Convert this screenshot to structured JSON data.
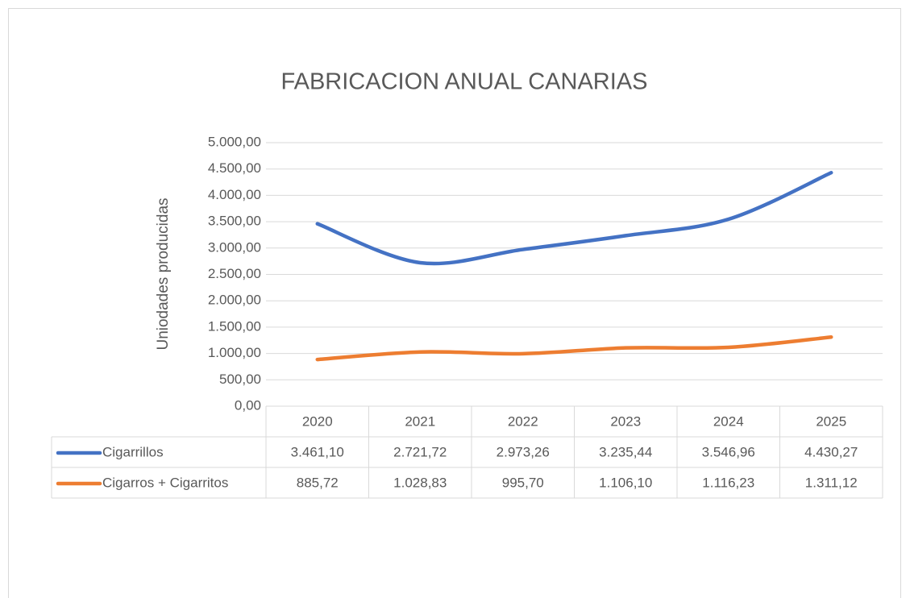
{
  "chart_data": {
    "type": "line",
    "title": "FABRICACION ANUAL CANARIAS",
    "y_label": "Uniodades producidas",
    "categories": [
      "2020",
      "2021",
      "2022",
      "2023",
      "2024",
      "2025"
    ],
    "series": [
      {
        "name": "Cigarrillos",
        "color": "#4472c4",
        "values": [
          3461.1,
          2721.72,
          2973.26,
          3235.44,
          3546.96,
          4430.27
        ],
        "value_labels": [
          "3.461,10",
          "2.721,72",
          "2.973,26",
          "3.235,44",
          "3.546,96",
          "4.430,27"
        ]
      },
      {
        "name": "Cigarros + Cigarritos",
        "color": "#ed7d31",
        "values": [
          885.72,
          1028.83,
          995.7,
          1106.1,
          1116.23,
          1311.12
        ],
        "value_labels": [
          "885,72",
          "1.028,83",
          "995,70",
          "1.106,10",
          "1.116,23",
          "1.311,12"
        ]
      }
    ],
    "ylim": [
      0,
      5000
    ],
    "yticks": [
      {
        "value": 0,
        "label": "0,00"
      },
      {
        "value": 500,
        "label": "500,00"
      },
      {
        "value": 1000,
        "label": "1.000,00"
      },
      {
        "value": 1500,
        "label": "1.500,00"
      },
      {
        "value": 2000,
        "label": "2.000,00"
      },
      {
        "value": 2500,
        "label": "2.500,00"
      },
      {
        "value": 3000,
        "label": "3.000,00"
      },
      {
        "value": 3500,
        "label": "3.500,00"
      },
      {
        "value": 4000,
        "label": "4.000,00"
      },
      {
        "value": 4500,
        "label": "4.500,00"
      },
      {
        "value": 5000,
        "label": "5.000,00"
      }
    ],
    "grid": true,
    "smooth": true
  }
}
